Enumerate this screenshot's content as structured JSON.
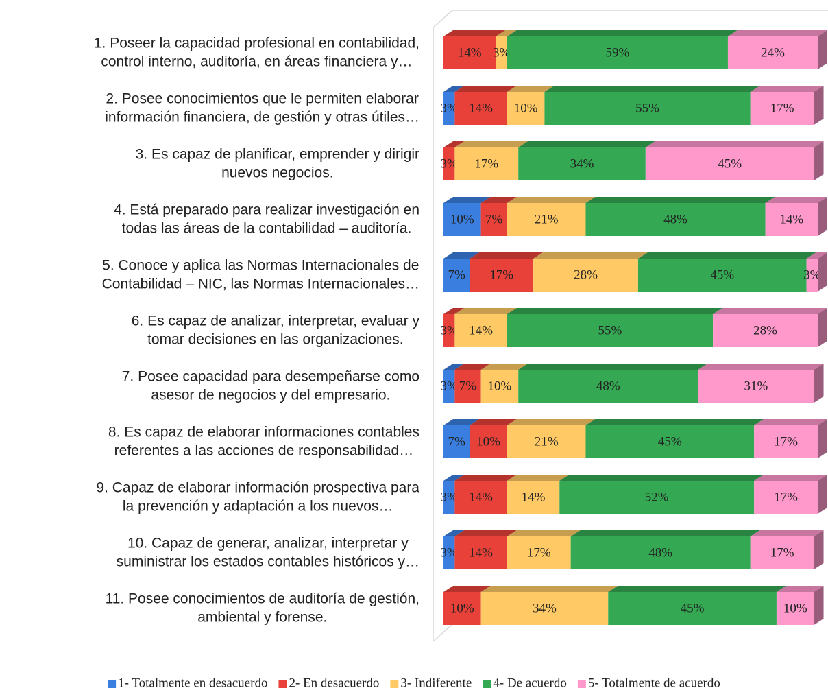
{
  "chart_data": {
    "type": "stacked-bar-horizontal-3d",
    "categories": [
      [
        "1. Poseer la capacidad profesional en contabilidad,",
        "control interno, auditoría, en áreas financiera y…"
      ],
      [
        "2. Posee conocimientos que le permiten elaborar",
        "información financiera, de gestión y otras útiles…"
      ],
      [
        "3. Es capaz de planificar, emprender y dirigir",
        "nuevos negocios."
      ],
      [
        "4. Está preparado para realizar investigación en",
        "todas las áreas de la contabilidad – auditoría."
      ],
      [
        "5. Conoce y aplica las Normas Internacionales de",
        "Contabilidad – NIC, las Normas Internacionales…"
      ],
      [
        "6. Es capaz de analizar, interpretar, evaluar y",
        "tomar decisiones en las organizaciones."
      ],
      [
        "7. Posee capacidad para desempeñarse como",
        "asesor de negocios y del empresario."
      ],
      [
        "8. Es capaz de elaborar informaciones contables",
        "referentes a las acciones de responsabilidad…"
      ],
      [
        "9. Capaz de elaborar información prospectiva para",
        "la prevención y adaptación a los nuevos…"
      ],
      [
        "10. Capaz de generar, analizar, interpretar y",
        "suministrar los estados contables históricos y…"
      ],
      [
        "11. Posee conocimientos de auditoría de gestión,",
        "ambiental y forense."
      ]
    ],
    "series": [
      {
        "name": "1- Totalmente en desacuerdo",
        "color": "#3a7fe0",
        "values": [
          null,
          3,
          null,
          10,
          7,
          null,
          3,
          7,
          3,
          3,
          null
        ],
        "value_labels": [
          null,
          "3%",
          null,
          "10%",
          "7%",
          null,
          "3%",
          "7%",
          "3%",
          "3%",
          null
        ]
      },
      {
        "name": "2- En desacuerdo",
        "color": "#e8413a",
        "values": [
          14,
          14,
          3,
          7,
          17,
          3,
          7,
          10,
          14,
          14,
          10
        ],
        "value_labels": [
          "14%",
          "14%",
          "3%",
          "7%",
          "17%",
          "3%",
          "7%",
          "10%",
          "14%",
          "14%",
          "10%"
        ]
      },
      {
        "name": "3- Indiferente",
        "color": "#ffc966",
        "values": [
          3,
          10,
          17,
          21,
          28,
          14,
          10,
          21,
          14,
          17,
          34
        ],
        "value_labels": [
          "3%",
          "10%",
          "17%",
          "21%",
          "28%",
          "14%",
          "10%",
          "21%",
          "14%",
          "17%",
          "34%"
        ]
      },
      {
        "name": "4- De acuerdo",
        "color": "#34a853",
        "values": [
          59,
          55,
          34,
          48,
          45,
          55,
          48,
          45,
          52,
          48,
          45
        ],
        "value_labels": [
          "59%",
          "55%",
          "34%",
          "48%",
          "45%",
          "55%",
          "48%",
          "45%",
          "52%",
          "48%",
          "45%"
        ]
      },
      {
        "name": "5- Totalmente de acuerdo",
        "color": "#ff99cc",
        "values": [
          24,
          17,
          45,
          14,
          3,
          28,
          31,
          17,
          17,
          17,
          10
        ],
        "value_labels": [
          "24%",
          "17%",
          "45%",
          "14%",
          "3%",
          "28%",
          "31%",
          "17%",
          "17%",
          "17%",
          "10%"
        ]
      }
    ],
    "xlim": [
      0,
      100
    ],
    "legend": "bottom"
  }
}
